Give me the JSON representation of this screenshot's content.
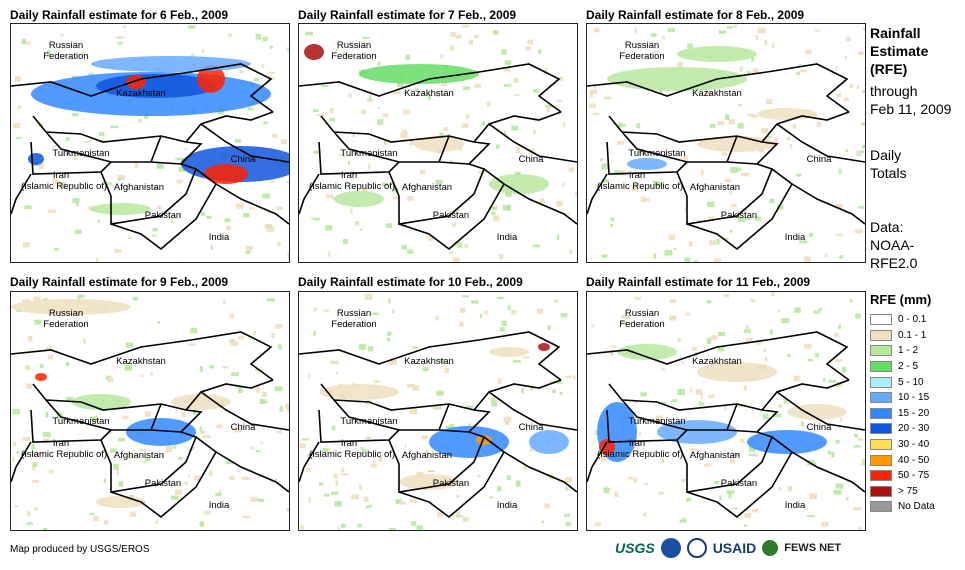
{
  "panels": [
    {
      "title": "Daily Rainfall estimate for 6 Feb., 2009"
    },
    {
      "title": "Daily Rainfall estimate for 7 Feb., 2009"
    },
    {
      "title": "Daily Rainfall estimate for 8 Feb., 2009"
    },
    {
      "title": "Daily Rainfall estimate for 9 Feb., 2009"
    },
    {
      "title": "Daily Rainfall estimate for 10 Feb., 2009"
    },
    {
      "title": "Daily Rainfall estimate for 11 Feb., 2009"
    }
  ],
  "map_labels": {
    "russia": "Russian\nFederation",
    "kazakhstan": "Kazakhstan",
    "turkmenistan": "Turkmenistan",
    "iran": "Iran\n(Islamic Republic of)",
    "afghanistan": "Afghanistan",
    "pakistan": "Pakistan",
    "china": "China",
    "india": "India"
  },
  "sidebar": {
    "title_1": "Rainfall",
    "title_2": "Estimate",
    "title_3": "(RFE)",
    "through": "through",
    "date": "Feb 11, 2009",
    "daily": "Daily",
    "totals": "Totals",
    "data_label": "Data:",
    "source_1": "NOAA-",
    "source_2": "RFE2.0"
  },
  "legend": {
    "title": "RFE (mm)",
    "items": [
      {
        "label": "0 - 0.1",
        "color": "#ffffff"
      },
      {
        "label": "0.1 - 1",
        "color": "#f0dfc0"
      },
      {
        "label": "1 - 2",
        "color": "#b8e8a0"
      },
      {
        "label": "2 - 5",
        "color": "#66dd66"
      },
      {
        "label": "5 - 10",
        "color": "#aaeeff"
      },
      {
        "label": "10 - 15",
        "color": "#66aaff"
      },
      {
        "label": "15 - 20",
        "color": "#3388ff"
      },
      {
        "label": "20 - 30",
        "color": "#1155dd"
      },
      {
        "label": "30 - 40",
        "color": "#ffdd55"
      },
      {
        "label": "40 - 50",
        "color": "#ff9900"
      },
      {
        "label": "50 - 75",
        "color": "#ff2200"
      },
      {
        "label": "> 75",
        "color": "#aa1111"
      },
      {
        "label": "No Data",
        "color": "#999999"
      }
    ]
  },
  "credit": "Map produced by USGS/EROS",
  "logos": {
    "usgs": "USGS",
    "usaid": "USAID",
    "fews": "FEWS NET"
  }
}
